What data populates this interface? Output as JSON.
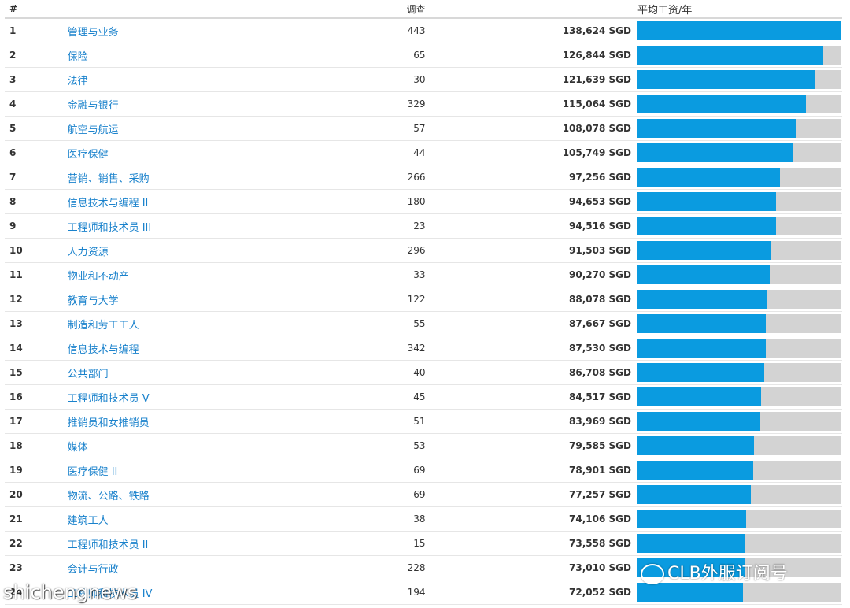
{
  "headers": {
    "num": "#",
    "name": "",
    "survey": "调查",
    "salary": "平均工资/年"
  },
  "colors": {
    "bar_fill": "#0a9be0",
    "bar_bg": "#d3d3d3",
    "link": "#1a82cc"
  },
  "max_salary": 138624,
  "rows": [
    {
      "num": "1",
      "name": "管理与业务",
      "survey": "443",
      "salary": "138,624 SGD",
      "value": 138624
    },
    {
      "num": "2",
      "name": "保险",
      "survey": "65",
      "salary": "126,844 SGD",
      "value": 126844
    },
    {
      "num": "3",
      "name": "法律",
      "survey": "30",
      "salary": "121,639 SGD",
      "value": 121639
    },
    {
      "num": "4",
      "name": "金融与银行",
      "survey": "329",
      "salary": "115,064 SGD",
      "value": 115064
    },
    {
      "num": "5",
      "name": "航空与航运",
      "survey": "57",
      "salary": "108,078 SGD",
      "value": 108078
    },
    {
      "num": "6",
      "name": "医疗保健",
      "survey": "44",
      "salary": "105,749 SGD",
      "value": 105749
    },
    {
      "num": "7",
      "name": "营销、销售、采购",
      "survey": "266",
      "salary": "97,256 SGD",
      "value": 97256
    },
    {
      "num": "8",
      "name": "信息技术与编程 II",
      "survey": "180",
      "salary": "94,653 SGD",
      "value": 94653
    },
    {
      "num": "9",
      "name": "工程师和技术员 III",
      "survey": "23",
      "salary": "94,516 SGD",
      "value": 94516
    },
    {
      "num": "10",
      "name": "人力资源",
      "survey": "296",
      "salary": "91,503 SGD",
      "value": 91503
    },
    {
      "num": "11",
      "name": "物业和不动产",
      "survey": "33",
      "salary": "90,270 SGD",
      "value": 90270
    },
    {
      "num": "12",
      "name": "教育与大学",
      "survey": "122",
      "salary": "88,078 SGD",
      "value": 88078
    },
    {
      "num": "13",
      "name": "制造和劳工工人",
      "survey": "55",
      "salary": "87,667 SGD",
      "value": 87667
    },
    {
      "num": "14",
      "name": "信息技术与编程",
      "survey": "342",
      "salary": "87,530 SGD",
      "value": 87530
    },
    {
      "num": "15",
      "name": "公共部门",
      "survey": "40",
      "salary": "86,708 SGD",
      "value": 86708
    },
    {
      "num": "16",
      "name": "工程师和技术员 V",
      "survey": "45",
      "salary": "84,517 SGD",
      "value": 84517
    },
    {
      "num": "17",
      "name": "推销员和女推销员",
      "survey": "51",
      "salary": "83,969 SGD",
      "value": 83969
    },
    {
      "num": "18",
      "name": "媒体",
      "survey": "53",
      "salary": "79,585 SGD",
      "value": 79585
    },
    {
      "num": "19",
      "name": "医疗保健 II",
      "survey": "69",
      "salary": "78,901 SGD",
      "value": 78901
    },
    {
      "num": "20",
      "name": "物流、公路、铁路",
      "survey": "69",
      "salary": "77,257 SGD",
      "value": 77257
    },
    {
      "num": "21",
      "name": "建筑工人",
      "survey": "38",
      "salary": "74,106 SGD",
      "value": 74106
    },
    {
      "num": "22",
      "name": "工程师和技术员 II",
      "survey": "15",
      "salary": "73,558 SGD",
      "value": 73558
    },
    {
      "num": "23",
      "name": "会计与行政",
      "survey": "228",
      "salary": "73,010 SGD",
      "value": 73010
    },
    {
      "num": "24",
      "name": "工程师和技术员 IV",
      "survey": "194",
      "salary": "72,052 SGD",
      "value": 72052
    }
  ],
  "watermark": {
    "text": "CLB外服订阅号"
  },
  "site_watermark": {
    "text": "shichengnews"
  }
}
